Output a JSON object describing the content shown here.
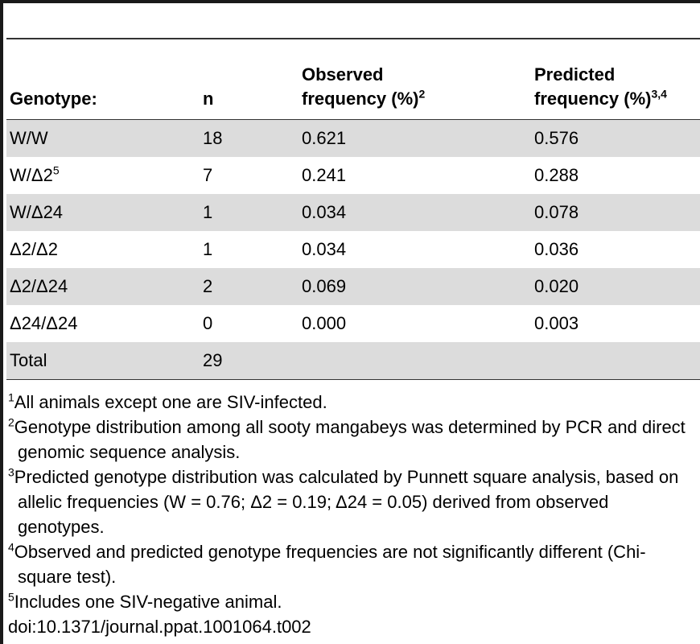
{
  "table": {
    "headers": [
      {
        "text": "Genotype:",
        "sup": ""
      },
      {
        "text": "n",
        "sup": ""
      },
      {
        "line1": "Observed",
        "line2": "frequency (%)",
        "sup": "2"
      },
      {
        "line1": "Predicted",
        "line2": "frequency (%)",
        "sup": "3,4"
      }
    ],
    "rows": [
      {
        "genotype": "W/W",
        "sup": "",
        "n": "18",
        "observed": "0.621",
        "predicted": "0.576"
      },
      {
        "genotype": "W/Δ2",
        "sup": "5",
        "n": "7",
        "observed": "0.241",
        "predicted": "0.288"
      },
      {
        "genotype": "W/Δ24",
        "sup": "",
        "n": "1",
        "observed": "0.034",
        "predicted": "0.078"
      },
      {
        "genotype": "Δ2/Δ2",
        "sup": "",
        "n": "1",
        "observed": "0.034",
        "predicted": "0.036"
      },
      {
        "genotype": "Δ2/Δ24",
        "sup": "",
        "n": "2",
        "observed": "0.069",
        "predicted": "0.020"
      },
      {
        "genotype": "Δ24/Δ24",
        "sup": "",
        "n": "0",
        "observed": "0.000",
        "predicted": "0.003"
      },
      {
        "genotype": "Total",
        "sup": "",
        "n": "29",
        "observed": "",
        "predicted": ""
      }
    ]
  },
  "footnotes": [
    {
      "mark": "1",
      "text": "All animals except one are SIV-infected."
    },
    {
      "mark": "2",
      "text": "Genotype distribution among all sooty mangabeys was determined by PCR and direct genomic sequence analysis."
    },
    {
      "mark": "3",
      "text": "Predicted genotype distribution was calculated by Punnett square analysis, based on allelic frequencies (W = 0.76; Δ2 = 0.19; Δ24 = 0.05) derived from observed genotypes."
    },
    {
      "mark": "4",
      "text": "Observed and predicted genotype frequencies are not significantly different (Chi-square test)."
    },
    {
      "mark": "5",
      "text": "Includes one SIV-negative animal."
    }
  ],
  "doi": "doi:10.1371/journal.ppat.1001064.t002",
  "colors": {
    "row_shade": "#dcdcdc",
    "rule": "#333333"
  }
}
